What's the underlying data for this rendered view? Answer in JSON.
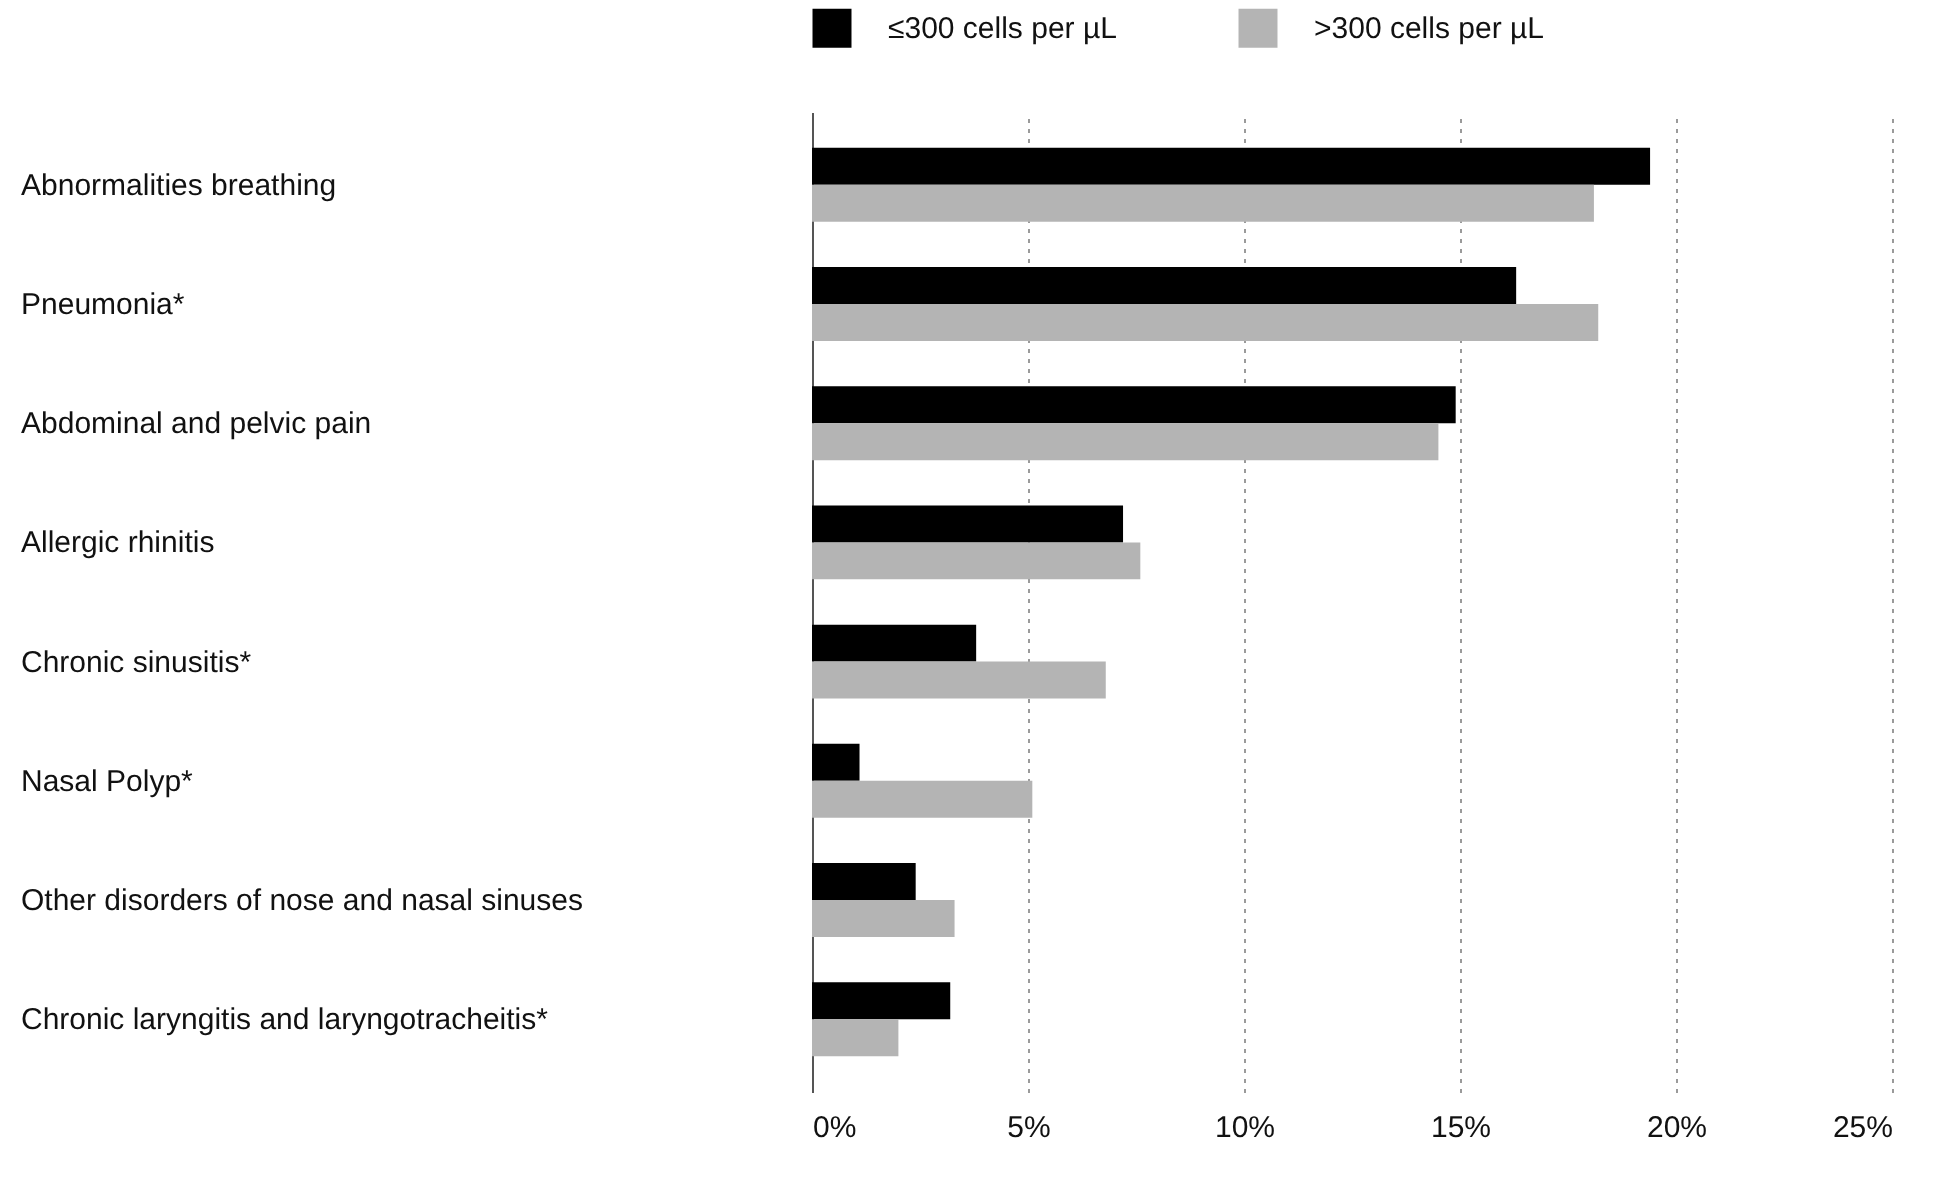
{
  "chart_data": {
    "type": "bar",
    "orientation": "horizontal",
    "categories": [
      "Abnormalities breathing",
      "Pneumonia*",
      "Abdominal and pelvic pain",
      "Allergic rhinitis",
      "Chronic sinusitis*",
      "Nasal Polyp*",
      "Other disorders of nose and nasal sinuses",
      "Chronic laryngitis and laryngotracheitis*"
    ],
    "series": [
      {
        "name": "≤300 cells per µL",
        "color": "#000000",
        "values": [
          19.4,
          16.3,
          14.9,
          7.2,
          3.8,
          1.1,
          2.4,
          3.2
        ]
      },
      {
        "name": ">300 cells per µL",
        "color": "#b4b4b4",
        "values": [
          18.1,
          18.2,
          14.5,
          7.6,
          6.8,
          5.1,
          3.3,
          2.0
        ]
      }
    ],
    "xlim": [
      0,
      25
    ],
    "xticks": [
      {
        "value": 0,
        "label": "0%"
      },
      {
        "value": 5,
        "label": "5%"
      },
      {
        "value": 10,
        "label": "10%"
      },
      {
        "value": 15,
        "label": "15%"
      },
      {
        "value": 20,
        "label": "20%"
      },
      {
        "value": 25,
        "label": "25%"
      }
    ],
    "grid": "x",
    "legend": "top"
  }
}
